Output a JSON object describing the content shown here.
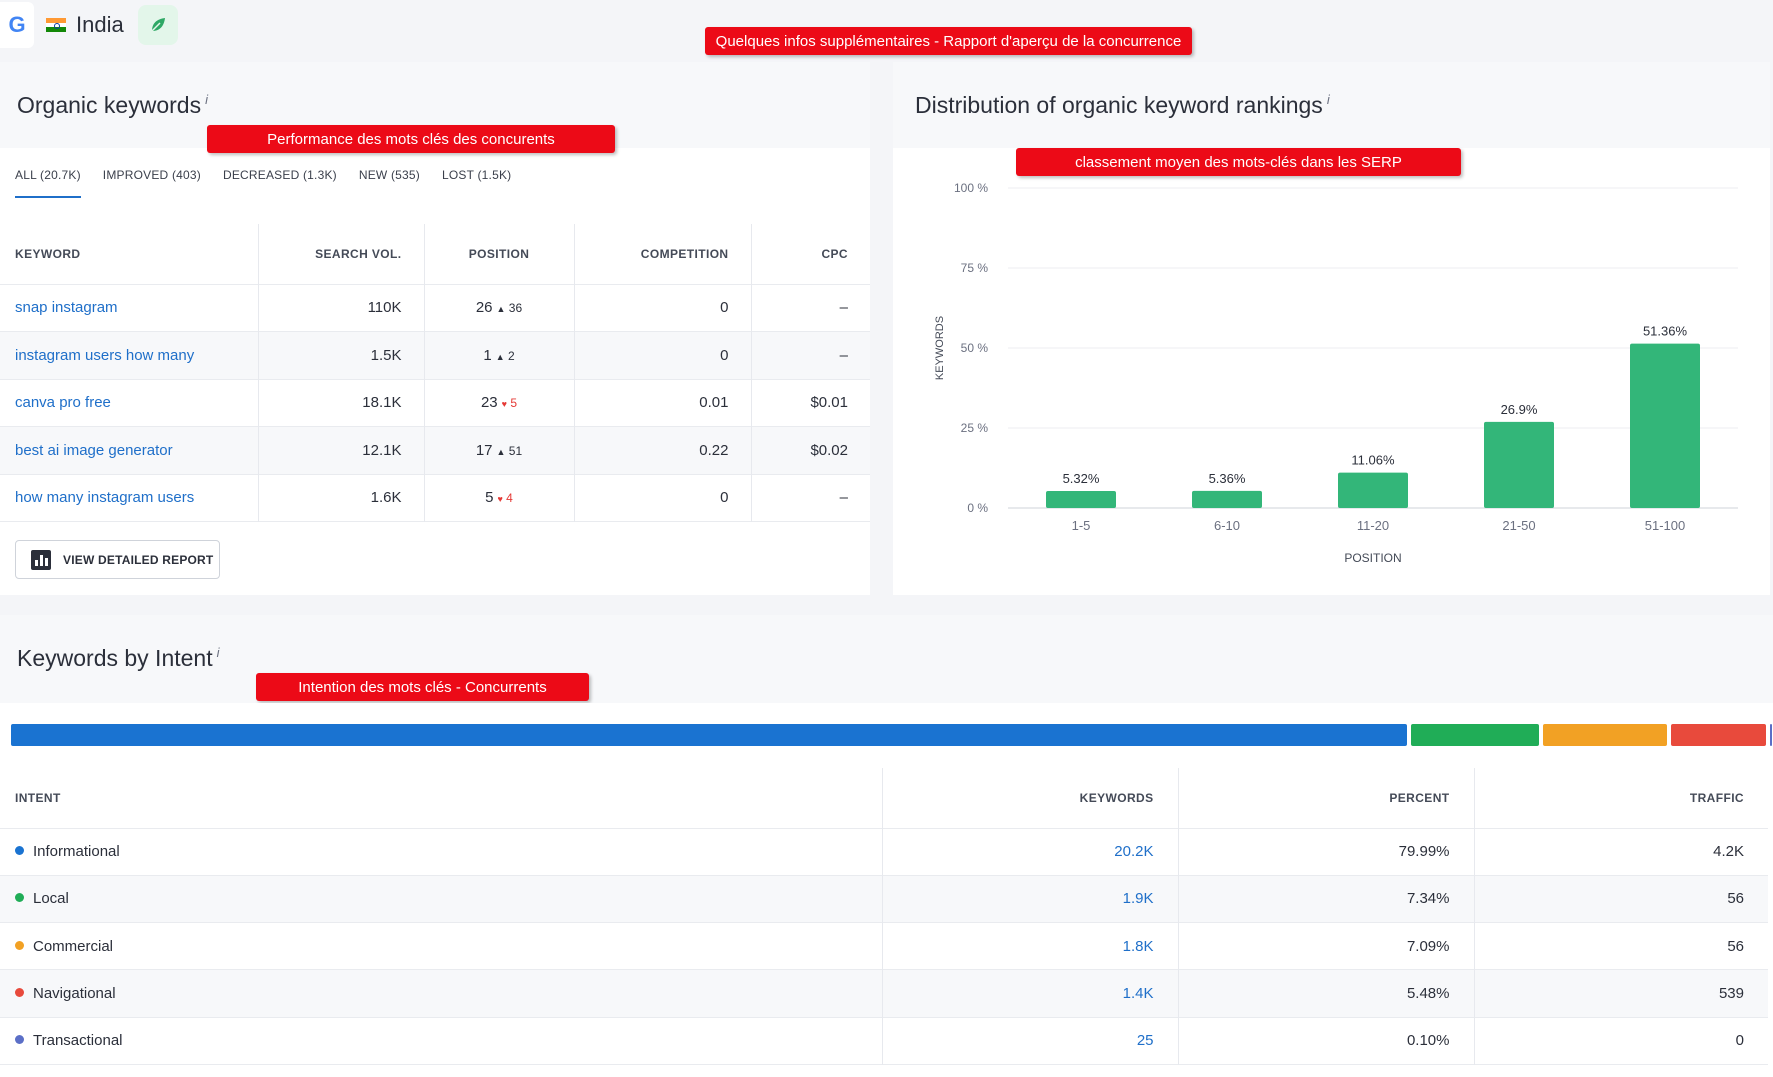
{
  "topbar": {
    "engine_letter": "G",
    "country": "India"
  },
  "callouts": {
    "top": "Quelques infos supplémentaires - Rapport d'aperçu de la concurrence",
    "organic": "Performance des mots clés des concurents",
    "distribution": "classement moyen des mots-clés dans les SERP",
    "intent": "Intention des mots clés - Concurrents"
  },
  "organic": {
    "title": "Organic keywords",
    "info": "i",
    "tabs": [
      "ALL (20.7K)",
      "IMPROVED (403)",
      "DECREASED (1.3K)",
      "NEW (535)",
      "LOST (1.5K)"
    ],
    "columns": [
      "KEYWORD",
      "SEARCH VOL.",
      "POSITION",
      "COMPETITION",
      "CPC"
    ],
    "rows": [
      {
        "keyword": "snap instagram",
        "volume": "110K",
        "position": "26",
        "change": "36",
        "dir": "up",
        "competition": "0",
        "cpc": "–"
      },
      {
        "keyword": "instagram users how many",
        "volume": "1.5K",
        "position": "1",
        "change": "2",
        "dir": "up",
        "competition": "0",
        "cpc": "–"
      },
      {
        "keyword": "canva pro free",
        "volume": "18.1K",
        "position": "23",
        "change": "5",
        "dir": "down",
        "competition": "0.01",
        "cpc": "$0.01"
      },
      {
        "keyword": "best ai image generator",
        "volume": "12.1K",
        "position": "17",
        "change": "51",
        "dir": "up",
        "competition": "0.22",
        "cpc": "$0.02"
      },
      {
        "keyword": "how many instagram users",
        "volume": "1.6K",
        "position": "5",
        "change": "4",
        "dir": "down",
        "competition": "0",
        "cpc": "–"
      }
    ],
    "report_button": "VIEW DETAILED REPORT"
  },
  "distribution": {
    "title": "Distribution of organic keyword rankings",
    "info": "i"
  },
  "chart_data": {
    "type": "bar",
    "categories": [
      "1-5",
      "6-10",
      "11-20",
      "21-50",
      "51-100"
    ],
    "values": [
      5.32,
      5.36,
      11.06,
      26.9,
      51.36
    ],
    "data_labels": [
      "5.32%",
      "5.36%",
      "11.06%",
      "26.9%",
      "51.36%"
    ],
    "y_ticks": [
      "0 %",
      "25 %",
      "50 %",
      "75 %",
      "100 %"
    ],
    "xlabel": "POSITION",
    "ylabel": "KEYWORDS",
    "ylim": [
      0,
      100
    ],
    "grid": true,
    "bar_color": "#33b679"
  },
  "intent": {
    "title": "Keywords by Intent",
    "info": "i",
    "bar": [
      {
        "name": "Informational",
        "percent": 79.99,
        "color": "#1a73d1"
      },
      {
        "name": "Local",
        "percent": 7.34,
        "color": "#20ad57"
      },
      {
        "name": "Commercial",
        "percent": 7.09,
        "color": "#f2a124"
      },
      {
        "name": "Navigational",
        "percent": 5.48,
        "color": "#e84a3c"
      },
      {
        "name": "Transactional",
        "percent": 0.1,
        "color": "#5b6fc7"
      }
    ],
    "columns": [
      "INTENT",
      "KEYWORDS",
      "PERCENT",
      "TRAFFIC"
    ],
    "rows": [
      {
        "name": "Informational",
        "keywords": "20.2K",
        "percent": "79.99%",
        "traffic": "4.2K",
        "color": "#1a73d1"
      },
      {
        "name": "Local",
        "keywords": "1.9K",
        "percent": "7.34%",
        "traffic": "56",
        "color": "#20ad57"
      },
      {
        "name": "Commercial",
        "keywords": "1.8K",
        "percent": "7.09%",
        "traffic": "56",
        "color": "#f2a124"
      },
      {
        "name": "Navigational",
        "keywords": "1.4K",
        "percent": "5.48%",
        "traffic": "539",
        "color": "#e84a3c"
      },
      {
        "name": "Transactional",
        "keywords": "25",
        "percent": "0.10%",
        "traffic": "0",
        "color": "#5b6fc7"
      }
    ]
  }
}
